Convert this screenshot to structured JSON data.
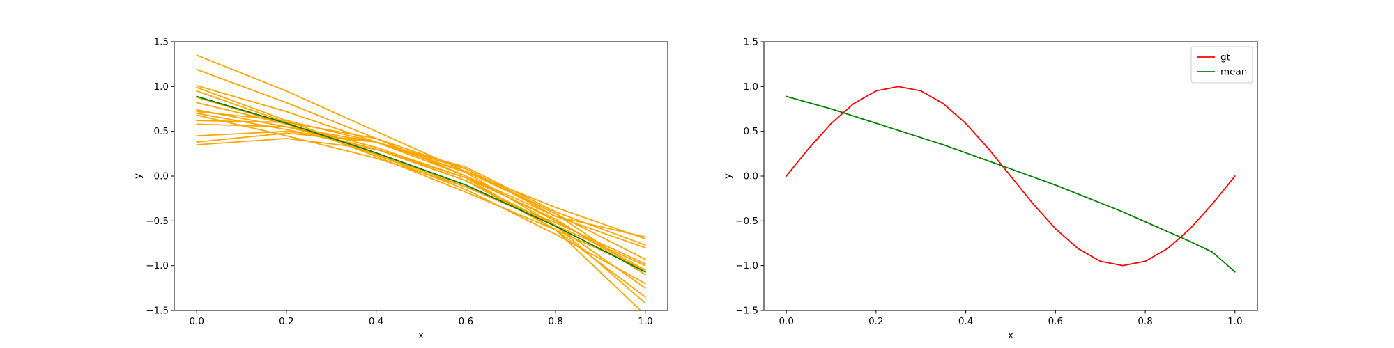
{
  "chart_data": [
    {
      "type": "line",
      "panel": "left",
      "xlabel": "x",
      "ylabel": "y",
      "xlim": [
        -0.05,
        1.05
      ],
      "ylim": [
        -1.5,
        1.5
      ],
      "xticks": [
        0.0,
        0.2,
        0.4,
        0.6,
        0.8,
        1.0
      ],
      "xtick_labels": [
        "0.0",
        "0.2",
        "0.4",
        "0.6",
        "0.8",
        "1.0"
      ],
      "yticks": [
        -1.5,
        -1.0,
        -0.5,
        0.0,
        0.5,
        1.0,
        1.5
      ],
      "ytick_labels": [
        "−1.5",
        "−1.0",
        "−0.5",
        "0.0",
        "0.5",
        "1.0",
        "1.5"
      ],
      "grid": false,
      "legend": null,
      "x": [
        0.0,
        0.2,
        0.4,
        0.6,
        0.8,
        1.0
      ],
      "series": [
        {
          "color": "#FFA500",
          "values": [
            1.35,
            0.95,
            0.5,
            0.05,
            -0.35,
            -0.7
          ]
        },
        {
          "color": "#FFA500",
          "values": [
            1.19,
            0.82,
            0.42,
            0.0,
            -0.45,
            -0.8
          ]
        },
        {
          "color": "#FFA500",
          "values": [
            1.01,
            0.72,
            0.38,
            0.0,
            -0.5,
            -1.05
          ]
        },
        {
          "color": "#FFA500",
          "values": [
            0.99,
            0.62,
            0.25,
            -0.12,
            -0.55,
            -1.0
          ]
        },
        {
          "color": "#FFA500",
          "values": [
            0.95,
            0.6,
            0.22,
            -0.18,
            -0.6,
            -1.05
          ]
        },
        {
          "color": "#FFA500",
          "values": [
            0.88,
            0.58,
            0.24,
            -0.15,
            -0.65,
            -1.2
          ]
        },
        {
          "color": "#FFA500",
          "values": [
            0.82,
            0.58,
            0.32,
            -0.02,
            -0.48,
            -1.1
          ]
        },
        {
          "color": "#FFA500",
          "values": [
            0.74,
            0.55,
            0.3,
            -0.05,
            -0.55,
            -1.25
          ]
        },
        {
          "color": "#FFA500",
          "values": [
            0.72,
            0.62,
            0.38,
            0.05,
            -0.42,
            -0.93
          ]
        },
        {
          "color": "#FFA500",
          "values": [
            0.7,
            0.52,
            0.3,
            -0.05,
            -0.6,
            -1.35
          ]
        },
        {
          "color": "#FFA500",
          "values": [
            0.68,
            0.45,
            0.2,
            -0.12,
            -0.52,
            -0.98
          ]
        },
        {
          "color": "#FFA500",
          "values": [
            0.62,
            0.6,
            0.42,
            0.08,
            -0.45,
            -0.68
          ]
        },
        {
          "color": "#FFA500",
          "values": [
            0.58,
            0.55,
            0.38,
            0.1,
            -0.4,
            -0.77
          ]
        },
        {
          "color": "#FFA500",
          "values": [
            0.45,
            0.5,
            0.38,
            0.08,
            -0.42,
            -1.1
          ]
        },
        {
          "color": "#FFA500",
          "values": [
            0.38,
            0.48,
            0.38,
            0.04,
            -0.55,
            -1.42
          ]
        },
        {
          "color": "#FFA500",
          "values": [
            0.35,
            0.42,
            0.3,
            -0.02,
            -0.6,
            -1.55
          ]
        },
        {
          "color": "#008000",
          "values": [
            0.89,
            0.59,
            0.26,
            -0.1,
            -0.56,
            -1.07
          ]
        }
      ]
    },
    {
      "type": "line",
      "panel": "right",
      "xlabel": "x",
      "ylabel": "y",
      "xlim": [
        -0.05,
        1.05
      ],
      "ylim": [
        -1.5,
        1.5
      ],
      "xticks": [
        0.0,
        0.2,
        0.4,
        0.6,
        0.8,
        1.0
      ],
      "xtick_labels": [
        "0.0",
        "0.2",
        "0.4",
        "0.6",
        "0.8",
        "1.0"
      ],
      "yticks": [
        -1.5,
        -1.0,
        -0.5,
        0.0,
        0.5,
        1.0,
        1.5
      ],
      "ytick_labels": [
        "−1.5",
        "−1.0",
        "−0.5",
        "0.0",
        "0.5",
        "1.0",
        "1.5"
      ],
      "grid": false,
      "legend": "top-right",
      "x": [
        0.0,
        0.05,
        0.1,
        0.15,
        0.2,
        0.25,
        0.3,
        0.35,
        0.4,
        0.45,
        0.5,
        0.55,
        0.6,
        0.65,
        0.7,
        0.75,
        0.8,
        0.85,
        0.9,
        0.95,
        1.0
      ],
      "series": [
        {
          "name": "gt",
          "color": "#FF0000",
          "values": [
            0.0,
            0.309,
            0.588,
            0.809,
            0.951,
            1.0,
            0.951,
            0.809,
            0.588,
            0.309,
            0.0,
            -0.309,
            -0.588,
            -0.809,
            -0.951,
            -1.0,
            -0.951,
            -0.809,
            -0.588,
            -0.309,
            0.0
          ]
        },
        {
          "name": "mean",
          "color": "#008000",
          "values": [
            0.89,
            0.82,
            0.75,
            0.67,
            0.59,
            0.51,
            0.43,
            0.35,
            0.26,
            0.17,
            0.08,
            -0.01,
            -0.1,
            -0.2,
            -0.3,
            -0.4,
            -0.51,
            -0.62,
            -0.73,
            -0.85,
            -1.07
          ]
        }
      ]
    }
  ]
}
